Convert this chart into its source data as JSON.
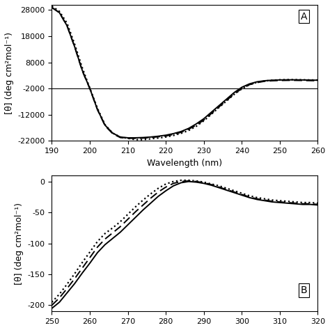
{
  "panel_A": {
    "xlim": [
      190,
      260
    ],
    "ylim": [
      -22000,
      30000
    ],
    "yticks": [
      -22000,
      -12000,
      -2000,
      8000,
      18000,
      28000
    ],
    "ytick_labels": [
      "-22000",
      "-12000",
      "-2000",
      "8000",
      "18000",
      "28000"
    ],
    "xticks": [
      190,
      200,
      210,
      220,
      230,
      240,
      250,
      260
    ],
    "xlabel": "Wavelength (nm)",
    "ylabel": "[θ] (deg cm²mol⁻¹)",
    "label": "A",
    "solid_x": [
      190,
      192,
      194,
      196,
      198,
      200,
      202,
      204,
      206,
      208,
      210,
      212,
      214,
      216,
      218,
      220,
      222,
      224,
      226,
      228,
      230,
      232,
      234,
      236,
      238,
      240,
      242,
      244,
      246,
      248,
      250,
      252,
      254,
      256,
      258,
      260
    ],
    "solid_y": [
      29000,
      27000,
      22000,
      14000,
      5000,
      -2000,
      -10000,
      -16000,
      -19000,
      -20500,
      -20800,
      -20800,
      -20700,
      -20500,
      -20200,
      -19800,
      -19200,
      -18400,
      -17200,
      -15500,
      -13500,
      -11000,
      -8500,
      -6000,
      -3500,
      -1500,
      -200,
      600,
      1000,
      1200,
      1300,
      1350,
      1350,
      1300,
      1250,
      1200
    ],
    "dashed_x": [
      190,
      192,
      194,
      196,
      198,
      200,
      202,
      204,
      206,
      208,
      210,
      212,
      214,
      216,
      218,
      220,
      222,
      224,
      226,
      228,
      230,
      232,
      234,
      236,
      238,
      240,
      242,
      244,
      246,
      248,
      250,
      252,
      254,
      256,
      258,
      260
    ],
    "dashed_y": [
      29000,
      27000,
      22000,
      14000,
      4800,
      -2000,
      -10000,
      -16200,
      -19200,
      -20700,
      -21000,
      -21000,
      -20900,
      -20700,
      -20400,
      -20100,
      -19500,
      -18700,
      -17500,
      -16000,
      -14000,
      -11500,
      -9000,
      -6500,
      -4000,
      -2000,
      -500,
      300,
      800,
      1000,
      1100,
      1150,
      1150,
      1100,
      1050,
      1000
    ],
    "dotted_x": [
      190,
      192,
      194,
      196,
      198,
      200,
      202,
      204,
      206,
      208,
      210,
      212,
      214,
      216,
      218,
      220,
      222,
      224,
      226,
      228,
      230,
      232,
      234,
      236,
      238,
      240,
      242,
      244,
      246,
      248,
      250,
      252,
      254,
      256,
      258,
      260
    ],
    "dotted_y": [
      29500,
      27500,
      23000,
      15000,
      6000,
      -1800,
      -9500,
      -15800,
      -19000,
      -20500,
      -21000,
      -21500,
      -21500,
      -21200,
      -20900,
      -20500,
      -19900,
      -19100,
      -18000,
      -16400,
      -14300,
      -11800,
      -9200,
      -6700,
      -4200,
      -2100,
      -500,
      400,
      900,
      1200,
      1350,
      1400,
      1400,
      1350,
      1300,
      1250
    ],
    "hline_y": -2000
  },
  "panel_B": {
    "xlim": [
      250,
      320
    ],
    "ylim": [
      -210,
      10
    ],
    "yticks": [
      -200,
      -150,
      -100,
      -50,
      0
    ],
    "ytick_labels": [
      "-200",
      "-150",
      "-100",
      "-50",
      "0"
    ],
    "xticks": [
      250,
      260,
      270,
      280,
      290,
      300,
      310,
      320
    ],
    "ylabel": "[θ] (deg cm²mol⁻¹)",
    "label": "B",
    "solid_x": [
      250,
      252,
      254,
      256,
      258,
      260,
      262,
      264,
      266,
      268,
      270,
      272,
      274,
      276,
      278,
      280,
      282,
      284,
      286,
      288,
      290,
      292,
      294,
      296,
      298,
      300,
      302,
      304,
      306,
      308,
      310,
      312,
      314,
      316,
      318,
      320
    ],
    "solid_y": [
      -205,
      -195,
      -180,
      -165,
      -148,
      -132,
      -115,
      -102,
      -92,
      -82,
      -70,
      -58,
      -46,
      -35,
      -24,
      -15,
      -7,
      -2,
      0,
      -1,
      -3,
      -6,
      -10,
      -14,
      -18,
      -22,
      -26,
      -29,
      -31,
      -33,
      -34,
      -35,
      -36,
      -37,
      -37,
      -38
    ],
    "dashed_x": [
      250,
      252,
      254,
      256,
      258,
      260,
      262,
      264,
      266,
      268,
      270,
      272,
      274,
      276,
      278,
      280,
      282,
      284,
      286,
      288,
      290,
      292,
      294,
      296,
      298,
      300,
      302,
      304,
      306,
      308,
      310,
      312,
      314,
      316,
      318,
      320
    ],
    "dashed_y": [
      -200,
      -188,
      -173,
      -157,
      -140,
      -123,
      -106,
      -93,
      -83,
      -73,
      -61,
      -49,
      -38,
      -27,
      -17,
      -9,
      -3,
      0,
      1,
      0,
      -2,
      -5,
      -9,
      -13,
      -17,
      -21,
      -25,
      -28,
      -30,
      -32,
      -33,
      -34,
      -35,
      -36,
      -36,
      -37
    ],
    "dotted_x": [
      250,
      252,
      254,
      256,
      258,
      260,
      262,
      264,
      266,
      268,
      270,
      272,
      274,
      276,
      278,
      280,
      282,
      284,
      286,
      288,
      290,
      292,
      294,
      296,
      298,
      300,
      302,
      304,
      306,
      308,
      310,
      312,
      314,
      316,
      318,
      320
    ],
    "dotted_y": [
      -195,
      -182,
      -166,
      -149,
      -131,
      -114,
      -97,
      -84,
      -75,
      -65,
      -53,
      -41,
      -30,
      -20,
      -11,
      -4,
      0,
      2,
      2,
      1,
      -1,
      -4,
      -7,
      -11,
      -15,
      -19,
      -23,
      -26,
      -28,
      -30,
      -31,
      -32,
      -33,
      -34,
      -34,
      -35
    ]
  },
  "line_color": "#000000",
  "bg_color": "#ffffff",
  "tick_fontsize": 8,
  "label_fontsize": 9,
  "linewidth_solid": 1.4,
  "linewidth_dotted": 1.6
}
